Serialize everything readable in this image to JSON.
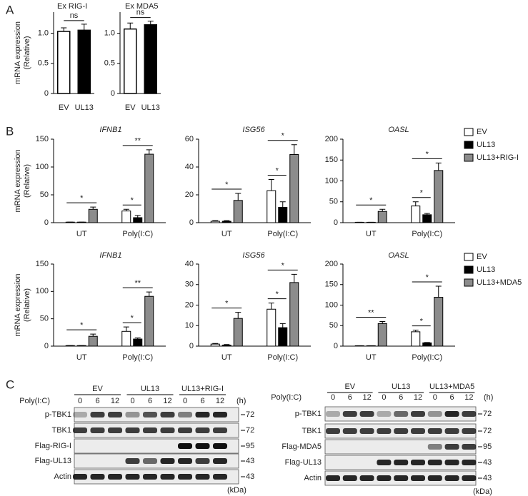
{
  "panels": [
    "A",
    "B",
    "C"
  ],
  "chart_data": [
    {
      "type": "bar",
      "title": "Ex RIG-I",
      "ylabel": [
        "mRNA expression",
        "(Relative)"
      ],
      "categories": [
        "EV",
        "UL13"
      ],
      "values": [
        1.03,
        1.05
      ],
      "errors": [
        0.06,
        0.1
      ],
      "colors": [
        "#ffffff",
        "#000000"
      ],
      "ylim": [
        0,
        1.35
      ],
      "yticks": [
        0,
        0.5,
        {
          "value": 1,
          "label": "1.0"
        }
      ],
      "annotations": [
        "ns"
      ]
    },
    {
      "type": "bar",
      "title": "Ex MDA5",
      "categories": [
        "EV",
        "UL13"
      ],
      "values": [
        1.07,
        1.14
      ],
      "errors": [
        0.1,
        0.06
      ],
      "colors": [
        "#ffffff",
        "#000000"
      ],
      "ylim": [
        0,
        1.35
      ],
      "yticks": [
        0,
        0.5,
        {
          "value": 1,
          "label": "1.0"
        }
      ],
      "annotations": [
        "ns"
      ]
    },
    {
      "type": "grouped_bar",
      "title": "IFNB1",
      "ylabel": [
        "mRNA expression",
        "(Relative)"
      ],
      "categories": [
        "UT",
        "Poly(I:C)"
      ],
      "ylim": [
        0,
        150
      ],
      "yticks": [
        0,
        50,
        100,
        150
      ],
      "series": [
        {
          "name": "EV",
          "color": "#ffffff",
          "values": [
            1,
            21
          ],
          "errors": [
            0,
            3
          ]
        },
        {
          "name": "UL13",
          "color": "#000000",
          "values": [
            1,
            9
          ],
          "errors": [
            0,
            4
          ]
        },
        {
          "name": "UL13+RIG-I",
          "color": "#8c8c8c",
          "values": [
            24,
            123
          ],
          "errors": [
            4,
            8
          ]
        }
      ],
      "annotations": [
        "*",
        "*",
        "**"
      ]
    },
    {
      "type": "grouped_bar",
      "title": "ISG56",
      "categories": [
        "UT",
        "Poly(I:C)"
      ],
      "ylim": [
        0,
        60
      ],
      "yticks": [
        0,
        20,
        40,
        60
      ],
      "series": [
        {
          "name": "EV",
          "color": "#ffffff",
          "values": [
            1,
            23
          ],
          "errors": [
            0.5,
            8
          ]
        },
        {
          "name": "UL13",
          "color": "#000000",
          "values": [
            1,
            11
          ],
          "errors": [
            0.5,
            4
          ]
        },
        {
          "name": "UL13+RIG-I",
          "color": "#8c8c8c",
          "values": [
            16,
            49
          ],
          "errors": [
            5,
            7
          ]
        }
      ],
      "annotations": [
        "*",
        "*",
        "*"
      ]
    },
    {
      "type": "grouped_bar",
      "title": "OASL",
      "categories": [
        "UT",
        "Poly(I:C)"
      ],
      "ylim": [
        0,
        200
      ],
      "yticks": [
        0,
        50,
        100,
        150,
        200
      ],
      "legend": "right",
      "series": [
        {
          "name": "EV",
          "color": "#ffffff",
          "values": [
            1,
            40
          ],
          "errors": [
            0,
            10
          ]
        },
        {
          "name": "UL13",
          "color": "#000000",
          "values": [
            1,
            19
          ],
          "errors": [
            0,
            3
          ]
        },
        {
          "name": "UL13+RIG-I",
          "color": "#8c8c8c",
          "values": [
            27,
            125
          ],
          "errors": [
            5,
            18
          ]
        }
      ],
      "annotations": [
        "*",
        "*",
        "*"
      ]
    },
    {
      "type": "grouped_bar",
      "title": "IFNB1",
      "ylabel": [
        "mRNA expression",
        "(Relative)"
      ],
      "categories": [
        "UT",
        "Poly(I:C)"
      ],
      "ylim": [
        0,
        150
      ],
      "yticks": [
        0,
        50,
        100,
        150
      ],
      "series": [
        {
          "name": "EV",
          "color": "#ffffff",
          "values": [
            1,
            27
          ],
          "errors": [
            0,
            8
          ]
        },
        {
          "name": "UL13",
          "color": "#000000",
          "values": [
            1,
            13
          ],
          "errors": [
            0,
            2
          ]
        },
        {
          "name": "UL13+MDA5",
          "color": "#8c8c8c",
          "values": [
            18,
            91
          ],
          "errors": [
            4,
            8
          ]
        }
      ],
      "annotations": [
        "*",
        "*",
        "**"
      ]
    },
    {
      "type": "grouped_bar",
      "title": "ISG56",
      "categories": [
        "UT",
        "Poly(I:C)"
      ],
      "ylim": [
        0,
        40
      ],
      "yticks": [
        0,
        10,
        20,
        30,
        40
      ],
      "series": [
        {
          "name": "EV",
          "color": "#ffffff",
          "values": [
            1,
            18
          ],
          "errors": [
            0.3,
            3
          ]
        },
        {
          "name": "UL13",
          "color": "#000000",
          "values": [
            0.5,
            9
          ],
          "errors": [
            0.3,
            2
          ]
        },
        {
          "name": "UL13+MDA5",
          "color": "#8c8c8c",
          "values": [
            13.5,
            31
          ],
          "errors": [
            3,
            4
          ]
        }
      ],
      "annotations": [
        "*",
        "*",
        "*"
      ]
    },
    {
      "type": "grouped_bar",
      "title": "OASL",
      "categories": [
        "UT",
        "Poly(I:C)"
      ],
      "ylim": [
        0,
        200
      ],
      "yticks": [
        0,
        50,
        100,
        150,
        200
      ],
      "legend": "right",
      "series": [
        {
          "name": "EV",
          "color": "#ffffff",
          "values": [
            1,
            35
          ],
          "errors": [
            0,
            4
          ]
        },
        {
          "name": "UL13",
          "color": "#000000",
          "values": [
            1,
            8
          ],
          "errors": [
            0,
            1
          ]
        },
        {
          "name": "UL13+MDA5",
          "color": "#8c8c8c",
          "values": [
            55,
            119
          ],
          "errors": [
            5,
            27
          ]
        }
      ],
      "annotations": [
        "**",
        "*",
        "*"
      ]
    }
  ],
  "blots": [
    {
      "groups": [
        "EV",
        "UL13",
        "UL13+RIG-I"
      ],
      "treatment": "Poly(I:C)",
      "times": [
        0,
        6,
        12
      ],
      "time_unit": "(h)",
      "marker_unit": "(kDa)",
      "rows": [
        {
          "label": "p-TBK1",
          "marker": 72,
          "intensity": [
            0.3,
            0.8,
            0.8,
            0.4,
            0.7,
            0.8,
            0.5,
            0.9,
            0.9
          ]
        },
        {
          "label": "TBK1",
          "marker": 72,
          "intensity": [
            0.8,
            0.8,
            0.8,
            0.8,
            0.8,
            0.8,
            0.8,
            0.8,
            0.8
          ]
        },
        {
          "label": "Flag-RIG-I",
          "marker": 95,
          "intensity": [
            0,
            0,
            0,
            0,
            0,
            0,
            1,
            1,
            1
          ]
        },
        {
          "label": "Flag-UL13",
          "marker": 43,
          "intensity": [
            0,
            0,
            0,
            0.8,
            0.6,
            0.9,
            0.9,
            0.8,
            0.9
          ]
        },
        {
          "label": "Actin",
          "marker": 43,
          "intensity": [
            0.9,
            0.9,
            0.9,
            0.9,
            0.9,
            0.9,
            0.9,
            0.9,
            0.9
          ]
        }
      ]
    },
    {
      "groups": [
        "EV",
        "UL13",
        "UL13+MDA5"
      ],
      "treatment": "Poly(I:C)",
      "times": [
        0,
        6,
        12
      ],
      "time_unit": "(h)",
      "marker_unit": "(kDa)",
      "rows": [
        {
          "label": "p-TBK1",
          "marker": 72,
          "intensity": [
            0.3,
            0.8,
            0.8,
            0.3,
            0.6,
            0.8,
            0.4,
            0.9,
            0.8
          ]
        },
        {
          "label": "TBK1",
          "marker": 72,
          "intensity": [
            0.8,
            0.8,
            0.8,
            0.8,
            0.8,
            0.8,
            0.8,
            0.8,
            0.8
          ]
        },
        {
          "label": "Flag-MDA5",
          "marker": 95,
          "intensity": [
            0,
            0,
            0,
            0,
            0,
            0,
            0.5,
            0.8,
            0.8
          ]
        },
        {
          "label": "Flag-UL13",
          "marker": 43,
          "intensity": [
            0,
            0,
            0,
            0.9,
            0.9,
            0.9,
            0.9,
            0.9,
            0.9
          ]
        },
        {
          "label": "Actin",
          "marker": 43,
          "intensity": [
            0.9,
            0.9,
            0.9,
            0.9,
            0.9,
            0.9,
            0.9,
            0.9,
            0.9
          ]
        }
      ]
    }
  ]
}
